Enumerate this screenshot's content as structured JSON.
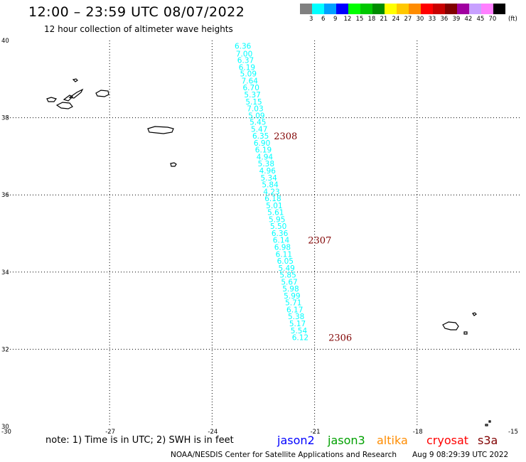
{
  "title": "12:00 – 23:59 UTC 08/07/2022",
  "subtitle": "12 hour collection of altimeter wave heights",
  "legend": {
    "colors": [
      "#808080",
      "#00ffff",
      "#00a0ff",
      "#0000ff",
      "#00ff00",
      "#00c800",
      "#008c00",
      "#ffff00",
      "#ffc800",
      "#ff8c00",
      "#ff0000",
      "#c80000",
      "#800000",
      "#a000a0",
      "#c8a0ff",
      "#ff80ff",
      "#000000"
    ],
    "labels": [
      "3",
      "6",
      "9",
      "12",
      "15",
      "18",
      "21",
      "24",
      "27",
      "30",
      "33",
      "36",
      "39",
      "42",
      "45",
      "70"
    ],
    "unit": "(ft)"
  },
  "axes": {
    "y_ticks": [
      "40",
      "38",
      "36",
      "34",
      "32",
      "30"
    ],
    "x_ticks": [
      "-30",
      "-27",
      "-24",
      "-21",
      "-18",
      "-15"
    ]
  },
  "chart_data": {
    "type": "scatter",
    "xlabel": "",
    "ylabel": "",
    "xlim": [
      -30,
      -15
    ],
    "ylim": [
      30,
      40
    ],
    "points": [
      {
        "lon": -23.1,
        "lat": 39.86,
        "swh": "6.36"
      },
      {
        "lon": -23.06,
        "lat": 39.66,
        "swh": "7.00"
      },
      {
        "lon": -23.02,
        "lat": 39.49,
        "swh": "6.37"
      },
      {
        "lon": -22.98,
        "lat": 39.31,
        "swh": "6.19"
      },
      {
        "lon": -22.94,
        "lat": 39.14,
        "swh": "5.09"
      },
      {
        "lon": -22.9,
        "lat": 38.96,
        "swh": "7.64"
      },
      {
        "lon": -22.86,
        "lat": 38.78,
        "swh": "6.70"
      },
      {
        "lon": -22.82,
        "lat": 38.6,
        "swh": "5.37"
      },
      {
        "lon": -22.78,
        "lat": 38.42,
        "swh": "5.15"
      },
      {
        "lon": -22.74,
        "lat": 38.24,
        "swh": "7.03"
      },
      {
        "lon": -22.7,
        "lat": 38.06,
        "swh": "5.09"
      },
      {
        "lon": -22.66,
        "lat": 37.89,
        "swh": "5.45"
      },
      {
        "lon": -22.62,
        "lat": 37.71,
        "swh": "5.47"
      },
      {
        "lon": -22.58,
        "lat": 37.53,
        "swh": "6.35"
      },
      {
        "lon": -22.54,
        "lat": 37.35,
        "swh": "6.90"
      },
      {
        "lon": -22.5,
        "lat": 37.17,
        "swh": "6.19"
      },
      {
        "lon": -22.46,
        "lat": 36.99,
        "swh": "4.94"
      },
      {
        "lon": -22.42,
        "lat": 36.81,
        "swh": "5.38"
      },
      {
        "lon": -22.38,
        "lat": 36.63,
        "swh": "4.96"
      },
      {
        "lon": -22.34,
        "lat": 36.45,
        "swh": "5.34"
      },
      {
        "lon": -22.3,
        "lat": 36.27,
        "swh": "5.84"
      },
      {
        "lon": -22.26,
        "lat": 36.09,
        "swh": "4.23"
      },
      {
        "lon": -22.22,
        "lat": 35.91,
        "swh": "6.18"
      },
      {
        "lon": -22.18,
        "lat": 35.73,
        "swh": "5.01"
      },
      {
        "lon": -22.14,
        "lat": 35.55,
        "swh": "5.61"
      },
      {
        "lon": -22.1,
        "lat": 35.37,
        "swh": "5.95"
      },
      {
        "lon": -22.06,
        "lat": 35.19,
        "swh": "5.50"
      },
      {
        "lon": -22.02,
        "lat": 35.01,
        "swh": "6.36"
      },
      {
        "lon": -21.98,
        "lat": 34.83,
        "swh": "6.14"
      },
      {
        "lon": -21.94,
        "lat": 34.65,
        "swh": "6.98"
      },
      {
        "lon": -21.9,
        "lat": 34.47,
        "swh": "6.11"
      },
      {
        "lon": -21.86,
        "lat": 34.29,
        "swh": "6.05"
      },
      {
        "lon": -21.82,
        "lat": 34.11,
        "swh": "5.49"
      },
      {
        "lon": -21.78,
        "lat": 33.93,
        "swh": "5.85"
      },
      {
        "lon": -21.74,
        "lat": 33.75,
        "swh": "5.67"
      },
      {
        "lon": -21.7,
        "lat": 33.57,
        "swh": "5.98"
      },
      {
        "lon": -21.66,
        "lat": 33.39,
        "swh": "5.99"
      },
      {
        "lon": -21.62,
        "lat": 33.21,
        "swh": "5.71"
      },
      {
        "lon": -21.58,
        "lat": 33.03,
        "swh": "6.17"
      },
      {
        "lon": -21.54,
        "lat": 32.85,
        "swh": "5.38"
      },
      {
        "lon": -21.5,
        "lat": 32.67,
        "swh": "5.17"
      },
      {
        "lon": -21.46,
        "lat": 32.49,
        "swh": "5.54"
      },
      {
        "lon": -21.42,
        "lat": 32.31,
        "swh": "6.12"
      }
    ],
    "passes": [
      {
        "lon": -21.85,
        "lat": 37.53,
        "label": "2308"
      },
      {
        "lon": -20.85,
        "lat": 34.83,
        "label": "2307"
      },
      {
        "lon": -20.25,
        "lat": 32.31,
        "label": "2306"
      }
    ],
    "point_color": "#00ffff",
    "pass_color": "#800000"
  },
  "note": "note: 1) Time is in UTC; 2) SWH is in feet",
  "satellites": [
    {
      "name": "jason2",
      "color": "#0000ff"
    },
    {
      "name": "jason3",
      "color": "#00a000"
    },
    {
      "name": "altika",
      "color": "#ff8c00"
    },
    {
      "name": "cryosat",
      "color": "#ff0000"
    },
    {
      "name": "s3a",
      "color": "#800000"
    }
  ],
  "credit": "NOAA/NESDIS Center for Satellite Applications and Research",
  "timestamp": "Aug  9 08:29:39 UTC 2022"
}
